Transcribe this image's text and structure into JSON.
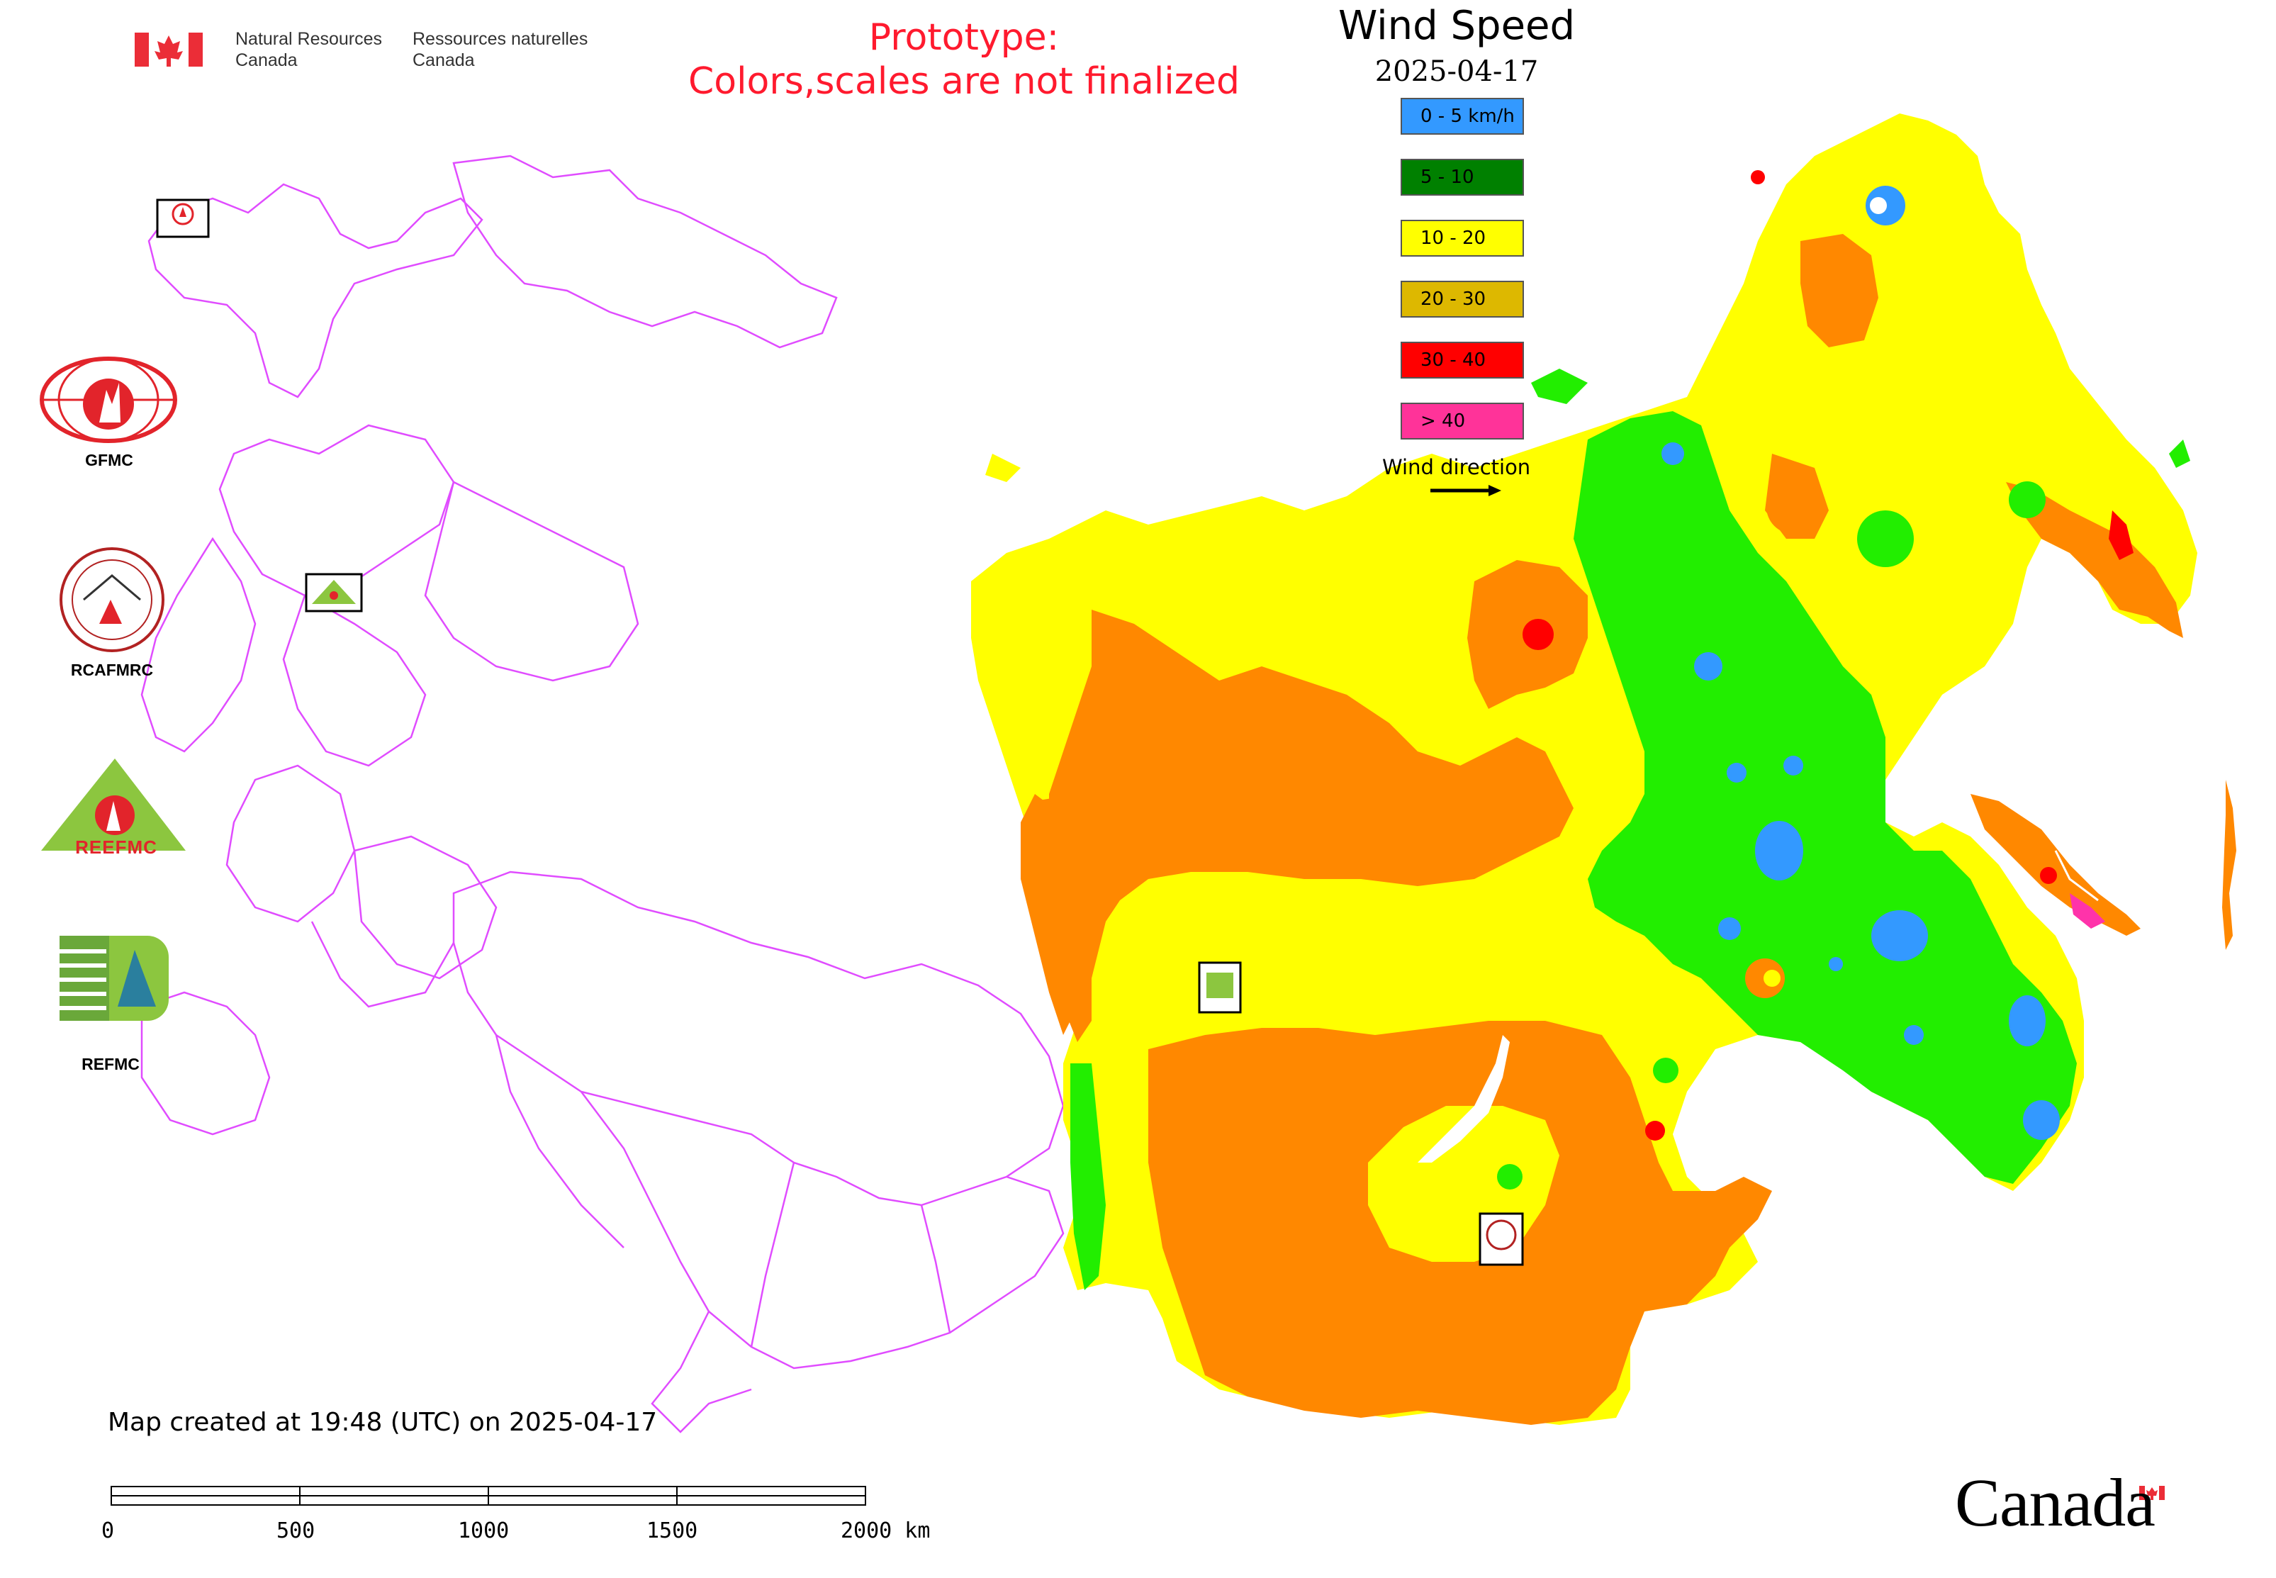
{
  "header": {
    "dept_en_line1": "Natural Resources",
    "dept_en_line2": "Canada",
    "dept_fr_line1": "Ressources naturelles",
    "dept_fr_line2": "Canada"
  },
  "prototype_notice": {
    "line1": "Prototype:",
    "line2": "Colors,scales are not finalized"
  },
  "title": "Wind Speed",
  "date": "2025-04-17",
  "legend": {
    "items": [
      {
        "label": "0 - 5 km/h",
        "color": "#3399ff"
      },
      {
        "label": "5 - 10",
        "color": "#008000"
      },
      {
        "label": "10 - 20",
        "color": "#ffff00"
      },
      {
        "label": "20 - 30",
        "color": "#ddb800"
      },
      {
        "label": "30 - 40",
        "color": "#ff0000"
      },
      {
        "label": "> 40",
        "color": "#ff3399"
      }
    ],
    "wind_direction_label": "Wind direction"
  },
  "logos": {
    "gfmc": "GFMC",
    "rcafmrc": "RCAFMRC",
    "reefmc": "REEFMC",
    "refmc": "REFMC"
  },
  "map_colors": {
    "low": "#3399ff",
    "green": "#22ee00",
    "yellow": "#ffff00",
    "orange": "#ff8800",
    "red": "#ff0000",
    "magenta": "#ff33aa",
    "boundary": "#e04cff"
  },
  "footer": {
    "created": "Map created at 19:48 (UTC) on 2025-04-17",
    "scale_labels": [
      "0",
      "500",
      "1000",
      "1500",
      "2000 km"
    ],
    "wordmark": "Canada"
  }
}
